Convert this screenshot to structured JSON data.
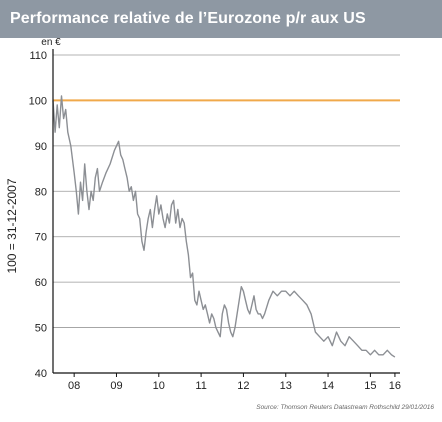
{
  "title": "Performance relative de l’Eurozone p/r aux US",
  "source": "Source: Thomson Reuters Datastream Rothschild 29/01/2016",
  "colors": {
    "title_bg": "#8e98a3",
    "title_text": "#ffffff",
    "series_line": "#8c8f94",
    "reference_line": "#f0a94a",
    "gridline": "#9a9a9a",
    "axis": "#111111"
  },
  "chart_data": {
    "type": "line",
    "unit_label": "en €",
    "ylabel": "100 = 31-12-2007",
    "xlabel": "",
    "ylim": [
      40,
      110
    ],
    "xlim": [
      2008.0,
      2016.2
    ],
    "grid": true,
    "y_ticks": [
      110,
      100,
      90,
      80,
      70,
      60,
      50,
      40
    ],
    "x_ticks": [
      {
        "label": "08",
        "value": 2008.5
      },
      {
        "label": "09",
        "value": 2009.5
      },
      {
        "label": "10",
        "value": 2010.5
      },
      {
        "label": "11",
        "value": 2011.5
      },
      {
        "label": "12",
        "value": 2012.5
      },
      {
        "label": "13",
        "value": 2013.5
      },
      {
        "label": "14",
        "value": 2014.5
      },
      {
        "label": "15",
        "value": 2015.5
      },
      {
        "label": "16",
        "value": 2016.08
      }
    ],
    "reference_line": {
      "y": 100
    },
    "series": [
      {
        "x": [
          2008.0,
          2008.05,
          2008.1,
          2008.15,
          2008.2,
          2008.25,
          2008.3,
          2008.35,
          2008.42,
          2008.5,
          2008.55,
          2008.6,
          2008.65,
          2008.7,
          2008.75,
          2008.8,
          2008.85,
          2008.9,
          2008.95,
          2009.0,
          2009.05,
          2009.1,
          2009.17,
          2009.25,
          2009.35,
          2009.45,
          2009.55,
          2009.6,
          2009.65,
          2009.7,
          2009.75,
          2009.8,
          2009.85,
          2009.9,
          2009.95,
          2010.0,
          2010.05,
          2010.1,
          2010.15,
          2010.2,
          2010.25,
          2010.3,
          2010.35,
          2010.4,
          2010.45,
          2010.5,
          2010.55,
          2010.6,
          2010.65,
          2010.7,
          2010.75,
          2010.8,
          2010.85,
          2010.9,
          2010.95,
          2011.0,
          2011.05,
          2011.1,
          2011.15,
          2011.2,
          2011.25,
          2011.3,
          2011.35,
          2011.4,
          2011.45,
          2011.5,
          2011.55,
          2011.6,
          2011.65,
          2011.7,
          2011.75,
          2011.8,
          2011.85,
          2011.9,
          2011.95,
          2012.0,
          2012.05,
          2012.1,
          2012.15,
          2012.2,
          2012.25,
          2012.3,
          2012.35,
          2012.4,
          2012.45,
          2012.5,
          2012.55,
          2012.6,
          2012.65,
          2012.7,
          2012.75,
          2012.8,
          2012.85,
          2012.9,
          2012.95,
          2013.0,
          2013.1,
          2013.2,
          2013.3,
          2013.4,
          2013.5,
          2013.6,
          2013.7,
          2013.8,
          2013.9,
          2014.0,
          2014.1,
          2014.2,
          2014.3,
          2014.4,
          2014.5,
          2014.6,
          2014.7,
          2014.8,
          2014.9,
          2015.0,
          2015.1,
          2015.2,
          2015.3,
          2015.4,
          2015.5,
          2015.6,
          2015.7,
          2015.8,
          2015.9,
          2016.0,
          2016.08
        ],
        "values": [
          100,
          93,
          99,
          94,
          101,
          96,
          98,
          93,
          90,
          84,
          80,
          75,
          82,
          78,
          86,
          80,
          76,
          80,
          78,
          83,
          85,
          80,
          82,
          84,
          86,
          89,
          91,
          88,
          87,
          85,
          83,
          80,
          81,
          78,
          80,
          75,
          74,
          69,
          67,
          71,
          74,
          76,
          72,
          76,
          79,
          75,
          77,
          74,
          72,
          75,
          73,
          77,
          78,
          73,
          76,
          72,
          74,
          73,
          69,
          66,
          61,
          62,
          56,
          55,
          58,
          56,
          54,
          55,
          53,
          51,
          53,
          52,
          50,
          49,
          48,
          53,
          55,
          54,
          51,
          49,
          48,
          50,
          53,
          56,
          59,
          58,
          56,
          54,
          53,
          55,
          57,
          54,
          53,
          53,
          52,
          53,
          56,
          58,
          57,
          58,
          58,
          57,
          58,
          57,
          56,
          55,
          53,
          49,
          48,
          47,
          48,
          46,
          49,
          47,
          46,
          48,
          47,
          46,
          45,
          45,
          44,
          45,
          44,
          44,
          45,
          44,
          43.5
        ]
      }
    ]
  }
}
